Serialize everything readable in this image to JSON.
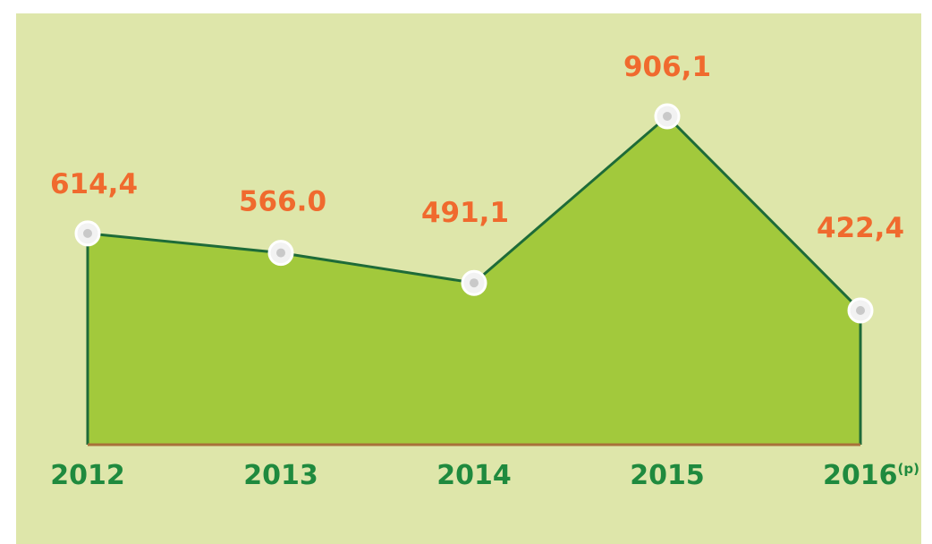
{
  "chart_data": {
    "type": "area",
    "categories": [
      "2012",
      "2013",
      "2014",
      "2015",
      "2016(p)"
    ],
    "values": [
      614.4,
      566.0,
      491.1,
      906.1,
      422.4
    ],
    "value_labels": [
      "614,4",
      "566.0",
      "491,1",
      "906,1",
      "422,4"
    ],
    "color": "#a2c93c",
    "line_color": "#1e6b38"
  }
}
